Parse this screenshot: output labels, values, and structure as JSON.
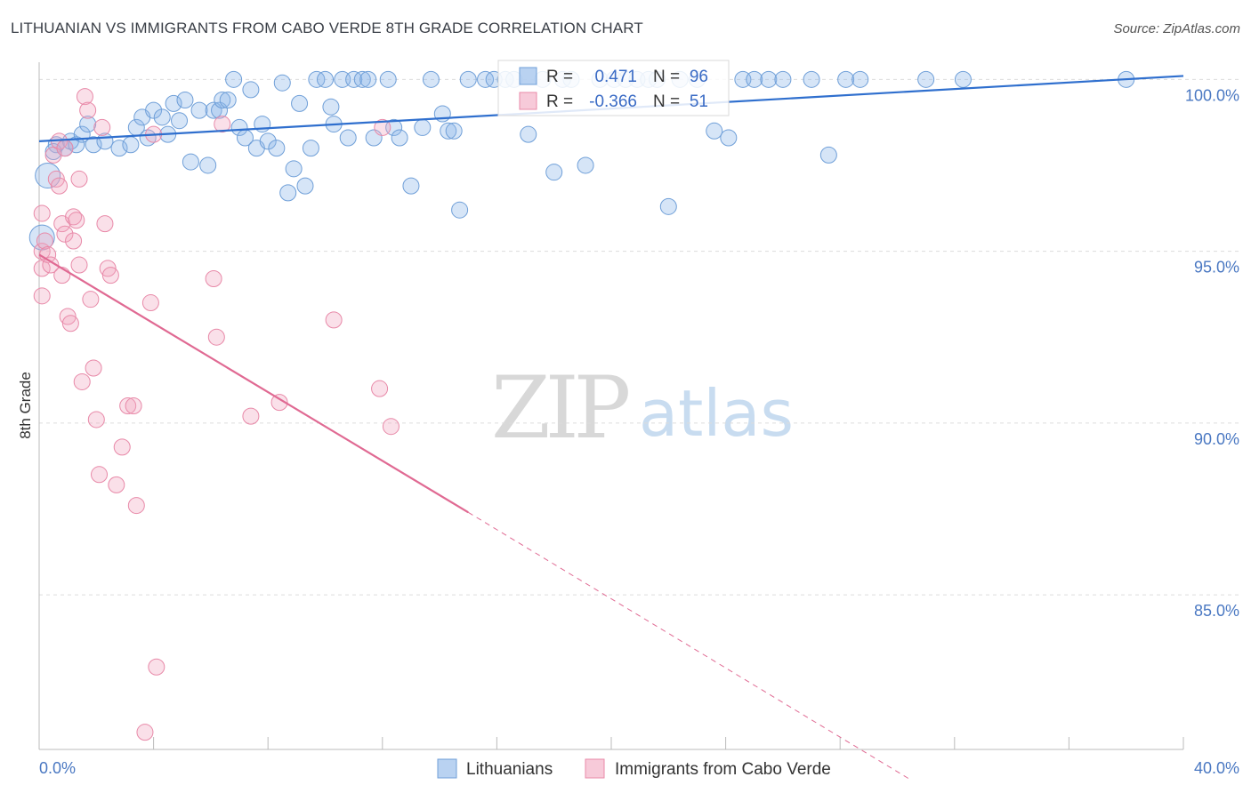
{
  "header": {
    "title": "LITHUANIAN VS IMMIGRANTS FROM CABO VERDE 8TH GRADE CORRELATION CHART",
    "source": "Source: ZipAtlas.com"
  },
  "watermark": {
    "zip": "ZIP",
    "atlas": "atlas"
  },
  "legend_box": {
    "rows": [
      {
        "r_label": "R =",
        "r_value": "0.471",
        "n_label": "N =",
        "n_value": "96",
        "color": "#8ab4e8"
      },
      {
        "r_label": "R =",
        "r_value": "-0.366",
        "n_label": "N =",
        "n_value": "51",
        "color": "#f2a7bf"
      }
    ]
  },
  "bottom_legend": {
    "items": [
      {
        "label": "Lithuanians",
        "color": "#8ab4e8"
      },
      {
        "label": "Immigrants from Cabo Verde",
        "color": "#f2a7bf"
      }
    ]
  },
  "chart_data": {
    "type": "scatter",
    "title": "LITHUANIAN VS IMMIGRANTS FROM CABO VERDE 8TH GRADE CORRELATION CHART",
    "xlabel": "",
    "ylabel": "8th Grade",
    "xlim": [
      0,
      40
    ],
    "ylim": [
      80.5,
      100.5
    ],
    "x_tick_labels": [
      "0.0%",
      "40.0%"
    ],
    "y_ticks": [
      85,
      90,
      95,
      100
    ],
    "y_tick_labels": [
      "85.0%",
      "90.0%",
      "95.0%",
      "100.0%"
    ],
    "grid": true,
    "series": [
      {
        "name": "Lithuanians",
        "color": "#8ab4e8",
        "stroke": "#6f9fd8",
        "trend": {
          "x": [
            0,
            40
          ],
          "y": [
            98.2,
            100.1
          ],
          "color": "#2f6fce"
        },
        "points": [
          [
            0.3,
            97.2
          ],
          [
            0.1,
            95.4
          ],
          [
            0.6,
            98.1
          ],
          [
            0.9,
            98.0
          ],
          [
            0.5,
            97.9
          ],
          [
            1.1,
            98.2
          ],
          [
            1.3,
            98.1
          ],
          [
            1.5,
            98.4
          ],
          [
            1.7,
            98.7
          ],
          [
            1.9,
            98.1
          ],
          [
            2.3,
            98.2
          ],
          [
            2.8,
            98.0
          ],
          [
            3.2,
            98.1
          ],
          [
            3.4,
            98.6
          ],
          [
            3.6,
            98.9
          ],
          [
            3.8,
            98.3
          ],
          [
            4.0,
            99.1
          ],
          [
            4.3,
            98.9
          ],
          [
            4.5,
            98.4
          ],
          [
            4.7,
            99.3
          ],
          [
            4.9,
            98.8
          ],
          [
            5.1,
            99.4
          ],
          [
            5.3,
            97.6
          ],
          [
            5.6,
            99.1
          ],
          [
            5.9,
            97.5
          ],
          [
            6.1,
            99.1
          ],
          [
            6.3,
            99.1
          ],
          [
            6.4,
            99.4
          ],
          [
            6.6,
            99.4
          ],
          [
            6.8,
            100.0
          ],
          [
            7.0,
            98.6
          ],
          [
            7.2,
            98.3
          ],
          [
            7.4,
            99.7
          ],
          [
            7.6,
            98.0
          ],
          [
            7.8,
            98.7
          ],
          [
            8.0,
            98.2
          ],
          [
            8.3,
            98.0
          ],
          [
            8.5,
            99.9
          ],
          [
            8.7,
            96.7
          ],
          [
            8.9,
            97.4
          ],
          [
            9.1,
            99.3
          ],
          [
            9.3,
            96.9
          ],
          [
            9.5,
            98.0
          ],
          [
            9.7,
            100.0
          ],
          [
            10.0,
            100.0
          ],
          [
            10.2,
            99.2
          ],
          [
            10.3,
            98.7
          ],
          [
            10.6,
            100.0
          ],
          [
            10.8,
            98.3
          ],
          [
            11.0,
            100.0
          ],
          [
            11.3,
            100.0
          ],
          [
            11.5,
            100.0
          ],
          [
            11.7,
            98.3
          ],
          [
            12.2,
            100.0
          ],
          [
            12.4,
            98.6
          ],
          [
            12.6,
            98.3
          ],
          [
            13.0,
            96.9
          ],
          [
            13.4,
            98.6
          ],
          [
            13.7,
            100.0
          ],
          [
            14.1,
            99.0
          ],
          [
            14.3,
            98.5
          ],
          [
            14.5,
            98.5
          ],
          [
            14.7,
            96.2
          ],
          [
            15.0,
            100.0
          ],
          [
            15.6,
            100.0
          ],
          [
            15.9,
            100.0
          ],
          [
            16.3,
            100.0
          ],
          [
            16.6,
            100.0
          ],
          [
            17.1,
            98.4
          ],
          [
            17.6,
            100.0
          ],
          [
            18.0,
            97.3
          ],
          [
            18.3,
            100.0
          ],
          [
            18.6,
            100.0
          ],
          [
            19.1,
            97.5
          ],
          [
            19.6,
            100.0
          ],
          [
            20.1,
            100.0
          ],
          [
            20.5,
            100.0
          ],
          [
            20.9,
            100.0
          ],
          [
            21.3,
            100.0
          ],
          [
            21.6,
            100.0
          ],
          [
            22.0,
            96.3
          ],
          [
            22.4,
            100.0
          ],
          [
            23.0,
            100.0
          ],
          [
            23.6,
            98.5
          ],
          [
            24.1,
            98.3
          ],
          [
            24.6,
            100.0
          ],
          [
            25.0,
            100.0
          ],
          [
            25.5,
            100.0
          ],
          [
            26.0,
            100.0
          ],
          [
            27.0,
            100.0
          ],
          [
            27.6,
            97.8
          ],
          [
            28.2,
            100.0
          ],
          [
            28.7,
            100.0
          ],
          [
            31.0,
            100.0
          ],
          [
            32.3,
            100.0
          ],
          [
            38.0,
            100.0
          ]
        ]
      },
      {
        "name": "Immigrants from Cabo Verde",
        "color": "#f2a7bf",
        "stroke": "#e889a8",
        "trend": {
          "x": [
            0,
            15
          ],
          "y": [
            94.9,
            87.4
          ],
          "dash_to": [
            30.5,
            79.6
          ],
          "color": "#e06a93"
        },
        "points": [
          [
            0.1,
            96.1
          ],
          [
            0.1,
            95.0
          ],
          [
            0.1,
            94.5
          ],
          [
            0.1,
            93.7
          ],
          [
            0.2,
            95.3
          ],
          [
            0.3,
            94.9
          ],
          [
            0.4,
            94.6
          ],
          [
            0.5,
            97.8
          ],
          [
            0.6,
            97.1
          ],
          [
            0.7,
            96.9
          ],
          [
            0.7,
            98.2
          ],
          [
            0.8,
            95.8
          ],
          [
            0.8,
            94.3
          ],
          [
            0.9,
            98.0
          ],
          [
            0.9,
            95.5
          ],
          [
            1.0,
            93.1
          ],
          [
            1.1,
            92.9
          ],
          [
            1.2,
            95.3
          ],
          [
            1.2,
            96.0
          ],
          [
            1.3,
            95.9
          ],
          [
            1.4,
            97.1
          ],
          [
            1.4,
            94.6
          ],
          [
            1.5,
            91.2
          ],
          [
            1.6,
            99.5
          ],
          [
            1.7,
            99.1
          ],
          [
            1.8,
            93.6
          ],
          [
            1.9,
            91.6
          ],
          [
            2.0,
            90.1
          ],
          [
            2.1,
            88.5
          ],
          [
            2.2,
            98.6
          ],
          [
            2.3,
            95.8
          ],
          [
            2.4,
            94.5
          ],
          [
            2.5,
            94.3
          ],
          [
            2.7,
            88.2
          ],
          [
            2.9,
            89.3
          ],
          [
            3.1,
            90.5
          ],
          [
            3.3,
            90.5
          ],
          [
            3.4,
            87.6
          ],
          [
            3.7,
            81.0
          ],
          [
            3.9,
            93.5
          ],
          [
            4.0,
            98.4
          ],
          [
            4.1,
            82.9
          ],
          [
            6.1,
            94.2
          ],
          [
            6.2,
            92.5
          ],
          [
            6.4,
            98.7
          ],
          [
            7.4,
            90.2
          ],
          [
            8.4,
            90.6
          ],
          [
            10.3,
            93.0
          ],
          [
            11.9,
            91.0
          ],
          [
            12.0,
            98.6
          ],
          [
            12.3,
            89.9
          ]
        ]
      }
    ]
  }
}
